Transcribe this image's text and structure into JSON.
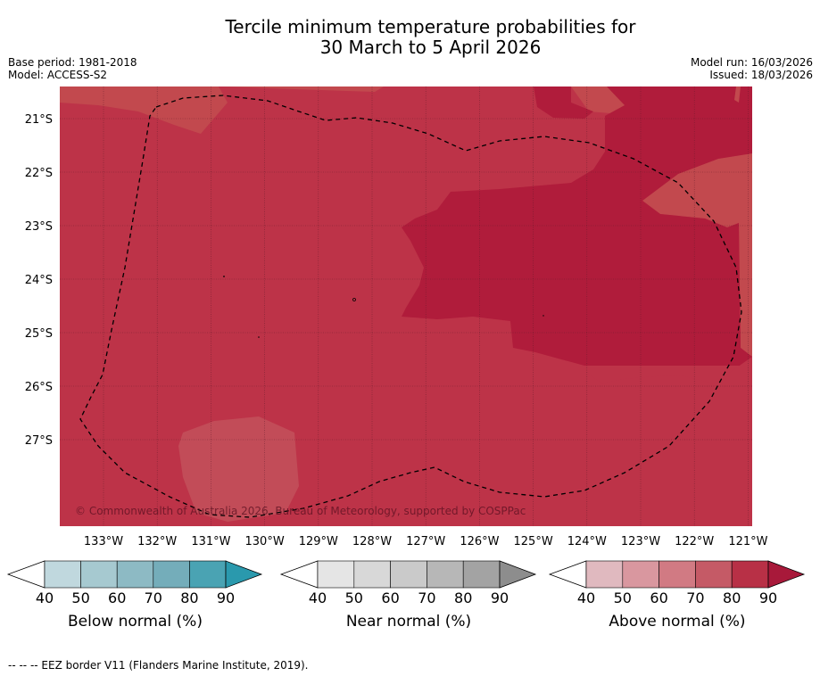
{
  "title": {
    "line1": "Tercile minimum temperature probabilities for",
    "line2": "30 March to 5 April 2026"
  },
  "meta": {
    "base_period": "Base period: 1981-2018",
    "model": "Model: ACCESS-S2",
    "model_run": "Model run: 16/03/2026",
    "issued": "Issued: 18/03/2026"
  },
  "map": {
    "lat_labels": [
      "21°S",
      "22°S",
      "23°S",
      "24°S",
      "25°S",
      "26°S",
      "27°S"
    ],
    "lon_labels": [
      "133°W",
      "132°W",
      "131°W",
      "130°W",
      "129°W",
      "128°W",
      "127°W",
      "126°W",
      "125°W",
      "124°W",
      "123°W",
      "122°W",
      "121°W"
    ],
    "copyright": "© Commonwealth of Australia 2026, Bureau of Meteorology, supported by COSPPac",
    "colors": {
      "above_80": "#bd3348",
      "above_90": "#b01c3b",
      "above_70": "#c2494e"
    }
  },
  "colorbars": [
    {
      "label": "Below normal (%)",
      "ticks": [
        "40",
        "50",
        "60",
        "70",
        "80",
        "90"
      ],
      "colors": [
        "#c0d8de",
        "#a6c9d0",
        "#8dbac4",
        "#74adba",
        "#4aa3b3",
        "#2a99ad"
      ]
    },
    {
      "label": "Near normal (%)",
      "ticks": [
        "40",
        "50",
        "60",
        "70",
        "80",
        "90"
      ],
      "colors": [
        "#e5e5e5",
        "#d8d8d8",
        "#cacaca",
        "#b7b7b7",
        "#a3a3a3",
        "#8d8d8d"
      ]
    },
    {
      "label": "Above normal (%)",
      "ticks": [
        "40",
        "50",
        "60",
        "70",
        "80",
        "90"
      ],
      "colors": [
        "#e0b9bf",
        "#d9979f",
        "#d17a83",
        "#c55a66",
        "#b83046",
        "#a8193a"
      ]
    }
  ],
  "footer": "-- -- -- EEZ border V11 (Flanders Marine Institute, 2019)."
}
